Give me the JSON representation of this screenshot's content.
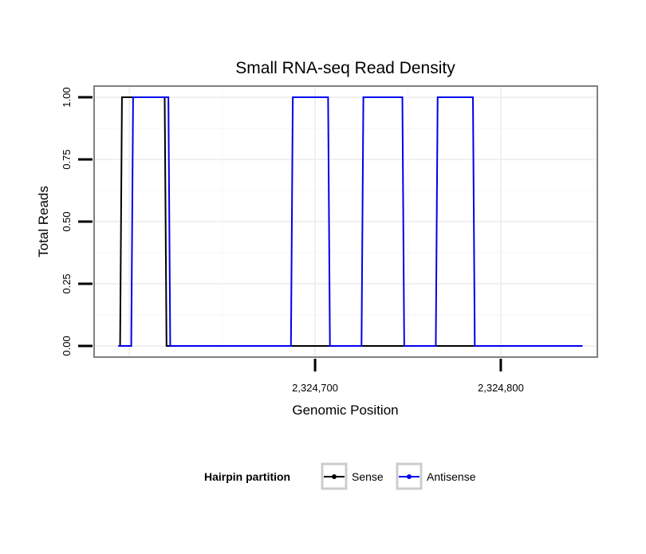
{
  "chart_data": {
    "type": "line",
    "title": "Small RNA-seq Read Density",
    "xlabel": "Genomic Position",
    "ylabel": "Total Reads",
    "xlim": [
      2324581,
      2324852
    ],
    "ylim": [
      -0.045,
      1.045
    ],
    "x_ticks": [
      {
        "value": 2324700,
        "label": "2,324,700"
      },
      {
        "value": 2324800,
        "label": "2,324,800"
      }
    ],
    "y_ticks": [
      {
        "value": 0.0,
        "label": "0.00"
      },
      {
        "value": 0.25,
        "label": "0.25"
      },
      {
        "value": 0.5,
        "label": "0.50"
      },
      {
        "value": 0.75,
        "label": "0.75"
      },
      {
        "value": 1.0,
        "label": "1.00"
      }
    ],
    "grid": true,
    "legend": {
      "title": "Hairpin partition",
      "placement": "bottom"
    },
    "series": [
      {
        "name": "Sense",
        "color": "#000000",
        "x": [
          2324594,
          2324595,
          2324596,
          2324597,
          2324618,
          2324619,
          2324620,
          2324844
        ],
        "y": [
          0,
          0,
          1,
          1,
          1,
          1,
          0,
          0
        ]
      },
      {
        "name": "Antisense",
        "color": "#0000ee",
        "x": [
          2324594,
          2324600,
          2324601,
          2324602,
          2324621,
          2324622,
          2324623,
          2324686,
          2324687,
          2324688,
          2324707,
          2324708,
          2324709,
          2324724,
          2324725,
          2324726,
          2324747,
          2324748,
          2324749,
          2324764,
          2324765,
          2324766,
          2324785,
          2324786,
          2324787,
          2324844
        ],
        "y": [
          0,
          0,
          0,
          1,
          1,
          0,
          0,
          0,
          0,
          1,
          1,
          0,
          0,
          0,
          0,
          1,
          1,
          0,
          0,
          0,
          0,
          1,
          1,
          0,
          0,
          0
        ]
      }
    ]
  }
}
